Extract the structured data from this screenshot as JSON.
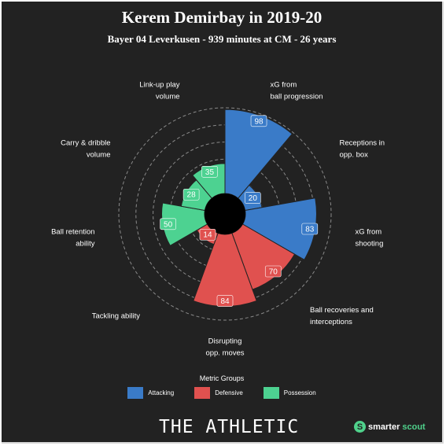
{
  "header": {
    "title": "Kerem Demirbay in 2019-20",
    "subtitle": "Bayer 04 Leverkusen - 939 minutes at CM - 26 years"
  },
  "chart_data": {
    "type": "polar-area",
    "scale_max": 100,
    "metrics": [
      {
        "label_lines": [
          "xG from",
          "ball progression"
        ],
        "value": 98,
        "group": "Attacking"
      },
      {
        "label_lines": [
          "Receptions in",
          "opp. box"
        ],
        "value": 20,
        "group": "Attacking"
      },
      {
        "label_lines": [
          "xG from",
          "shooting"
        ],
        "value": 83,
        "group": "Attacking"
      },
      {
        "label_lines": [
          "Ball recoveries and",
          "interceptions"
        ],
        "value": 70,
        "group": "Defensive"
      },
      {
        "label_lines": [
          "Disrupting",
          "opp. moves"
        ],
        "value": 84,
        "group": "Defensive"
      },
      {
        "label_lines": [
          "Tackling ability"
        ],
        "value": 14,
        "group": "Defensive"
      },
      {
        "label_lines": [
          "Ball retention",
          "ability"
        ],
        "value": 50,
        "group": "Possession"
      },
      {
        "label_lines": [
          "Carry & dribble",
          "volume"
        ],
        "value": 28,
        "group": "Possession"
      },
      {
        "label_lines": [
          "Link-up play",
          "volume"
        ],
        "value": 35,
        "group": "Possession"
      }
    ],
    "groups": [
      {
        "name": "Attacking",
        "color": "#3a7bc8"
      },
      {
        "name": "Defensive",
        "color": "#e0514f"
      },
      {
        "name": "Possession",
        "color": "#4dd291"
      }
    ],
    "legend_title": "Metric Groups",
    "gridlines": true
  },
  "footer": {
    "brand": "THE ATHLETIC",
    "logo_mark": "S",
    "logo_part1": "smarter",
    "logo_part2": "scout"
  }
}
